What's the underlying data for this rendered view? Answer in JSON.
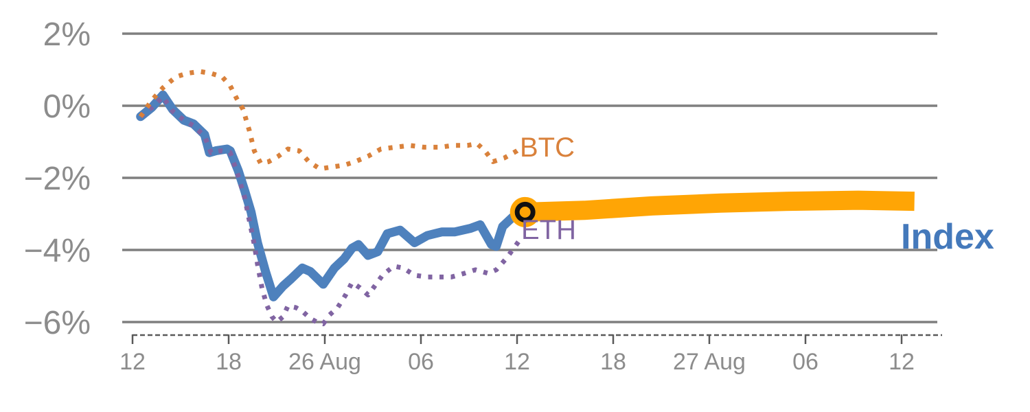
{
  "colors": {
    "background": "#FFFFFF",
    "gridline": "#7F7F7F",
    "axis_line": "#595959",
    "tick_label": "#8C8C8C",
    "btc": "#D9813B",
    "eth": "#8064A2",
    "index_line": "#4E81BD",
    "index_label": "#4479BB",
    "forecast_band": "#FFA505",
    "marker_ring": "#111111"
  },
  "chart_data": {
    "type": "line",
    "title": "",
    "xlabel": "",
    "ylabel": "",
    "grid": "horizontal",
    "legend_position": "inline-end-of-line",
    "x_axis": {
      "unit": "time (6-hour major ticks)",
      "range_hours": [
        0,
        50.5
      ],
      "ticks": [
        {
          "t": 0,
          "label": "12"
        },
        {
          "t": 6,
          "label": "18"
        },
        {
          "t": 12,
          "label": "26 Aug"
        },
        {
          "t": 18,
          "label": "06"
        },
        {
          "t": 24,
          "label": "12"
        },
        {
          "t": 30,
          "label": "18"
        },
        {
          "t": 36,
          "label": "27 Aug"
        },
        {
          "t": 42,
          "label": "06"
        },
        {
          "t": 48,
          "label": "12"
        }
      ]
    },
    "y_axis": {
      "unit": "%",
      "range": [
        -6.6,
        2.2
      ],
      "ticks": [
        {
          "v": 2,
          "label": "2%"
        },
        {
          "v": 0,
          "label": "0%"
        },
        {
          "v": -2,
          "label": "−2%"
        },
        {
          "v": -4,
          "label": "−4%"
        },
        {
          "v": -6,
          "label": "−6%"
        }
      ]
    },
    "series": [
      {
        "name": "Index",
        "color": "#4E81BD",
        "style": "solid-thick",
        "points": [
          [
            0.5,
            -0.3
          ],
          [
            1.2,
            -0.05
          ],
          [
            1.9,
            0.3
          ],
          [
            2.5,
            -0.1
          ],
          [
            3.2,
            -0.4
          ],
          [
            3.8,
            -0.5
          ],
          [
            4.5,
            -0.8
          ],
          [
            4.8,
            -1.3
          ],
          [
            5.2,
            -1.25
          ],
          [
            5.9,
            -1.2
          ],
          [
            6.1,
            -1.25
          ],
          [
            6.6,
            -1.8
          ],
          [
            7.0,
            -2.35
          ],
          [
            7.4,
            -2.95
          ],
          [
            7.8,
            -3.8
          ],
          [
            8.3,
            -4.6
          ],
          [
            8.8,
            -5.3
          ],
          [
            9.4,
            -5.0
          ],
          [
            9.9,
            -4.8
          ],
          [
            10.6,
            -4.5
          ],
          [
            11.1,
            -4.6
          ],
          [
            11.9,
            -4.95
          ],
          [
            12.6,
            -4.5
          ],
          [
            13.2,
            -4.25
          ],
          [
            13.7,
            -3.95
          ],
          [
            14.1,
            -3.85
          ],
          [
            14.7,
            -4.15
          ],
          [
            15.3,
            -4.05
          ],
          [
            15.9,
            -3.55
          ],
          [
            16.7,
            -3.45
          ],
          [
            17.6,
            -3.8
          ],
          [
            18.4,
            -3.6
          ],
          [
            19.3,
            -3.5
          ],
          [
            20.1,
            -3.5
          ],
          [
            21.1,
            -3.4
          ],
          [
            21.7,
            -3.3
          ],
          [
            22.4,
            -3.85
          ],
          [
            22.7,
            -3.9
          ],
          [
            23.1,
            -3.35
          ],
          [
            23.7,
            -3.1
          ],
          [
            24.5,
            -2.95
          ]
        ]
      },
      {
        "name": "ETH",
        "color": "#8064A2",
        "style": "dotted",
        "points": [
          [
            0.5,
            -0.3
          ],
          [
            1.2,
            -0.05
          ],
          [
            1.9,
            0.25
          ],
          [
            2.5,
            -0.15
          ],
          [
            3.2,
            -0.4
          ],
          [
            3.8,
            -0.55
          ],
          [
            4.5,
            -0.85
          ],
          [
            4.9,
            -1.3
          ],
          [
            5.5,
            -1.25
          ],
          [
            6.1,
            -1.3
          ],
          [
            6.6,
            -1.95
          ],
          [
            7.0,
            -2.55
          ],
          [
            7.3,
            -3.2
          ],
          [
            7.6,
            -3.85
          ],
          [
            7.8,
            -4.4
          ],
          [
            8.1,
            -5.1
          ],
          [
            8.4,
            -5.55
          ],
          [
            8.7,
            -5.85
          ],
          [
            9.0,
            -6.0
          ],
          [
            9.4,
            -5.85
          ],
          [
            9.7,
            -5.55
          ],
          [
            10.2,
            -5.6
          ],
          [
            10.6,
            -5.7
          ],
          [
            11.1,
            -5.9
          ],
          [
            11.5,
            -6.0
          ],
          [
            11.9,
            -6.05
          ],
          [
            12.3,
            -5.8
          ],
          [
            12.8,
            -5.6
          ],
          [
            13.3,
            -5.25
          ],
          [
            13.7,
            -4.9
          ],
          [
            14.2,
            -5.05
          ],
          [
            14.7,
            -5.25
          ],
          [
            15.2,
            -4.95
          ],
          [
            15.6,
            -4.7
          ],
          [
            16.3,
            -4.45
          ],
          [
            16.9,
            -4.5
          ],
          [
            17.6,
            -4.7
          ],
          [
            18.4,
            -4.75
          ],
          [
            19.1,
            -4.75
          ],
          [
            19.9,
            -4.75
          ],
          [
            20.7,
            -4.65
          ],
          [
            21.4,
            -4.55
          ],
          [
            22.2,
            -4.65
          ],
          [
            22.7,
            -4.55
          ],
          [
            23.3,
            -4.25
          ],
          [
            23.8,
            -3.95
          ],
          [
            24.2,
            -3.7
          ]
        ]
      },
      {
        "name": "BTC",
        "color": "#D9813B",
        "style": "dotted",
        "points": [
          [
            0.5,
            -0.3
          ],
          [
            1.2,
            0.15
          ],
          [
            1.9,
            0.5
          ],
          [
            2.7,
            0.8
          ],
          [
            3.4,
            0.9
          ],
          [
            4.2,
            0.95
          ],
          [
            4.9,
            0.9
          ],
          [
            5.6,
            0.8
          ],
          [
            6.1,
            0.55
          ],
          [
            6.5,
            0.2
          ],
          [
            6.9,
            -0.1
          ],
          [
            7.3,
            -0.7
          ],
          [
            7.6,
            -1.25
          ],
          [
            8.0,
            -1.6
          ],
          [
            8.5,
            -1.55
          ],
          [
            9.1,
            -1.4
          ],
          [
            9.7,
            -1.2
          ],
          [
            10.4,
            -1.25
          ],
          [
            11.0,
            -1.55
          ],
          [
            11.7,
            -1.75
          ],
          [
            12.4,
            -1.7
          ],
          [
            13.2,
            -1.65
          ],
          [
            13.9,
            -1.55
          ],
          [
            14.7,
            -1.4
          ],
          [
            15.5,
            -1.2
          ],
          [
            16.4,
            -1.15
          ],
          [
            17.3,
            -1.1
          ],
          [
            18.2,
            -1.15
          ],
          [
            19.2,
            -1.15
          ],
          [
            20.0,
            -1.1
          ],
          [
            20.9,
            -1.1
          ],
          [
            21.5,
            -1.05
          ],
          [
            22.0,
            -1.25
          ],
          [
            22.5,
            -1.55
          ],
          [
            23.2,
            -1.45
          ],
          [
            24.0,
            -1.25
          ],
          [
            24.3,
            -1.15
          ]
        ]
      },
      {
        "name": "Index forecast",
        "color": "#FFA505",
        "style": "band",
        "points": [
          [
            24.5,
            -2.95
          ],
          [
            28.2,
            -2.9
          ],
          [
            32.4,
            -2.78
          ],
          [
            36.7,
            -2.7
          ],
          [
            41.0,
            -2.65
          ],
          [
            45.3,
            -2.62
          ],
          [
            48.8,
            -2.65
          ]
        ]
      }
    ],
    "marker": {
      "t": 24.5,
      "pct": -2.95,
      "description": "black ring on amber disc at forecast start"
    },
    "inline_labels": {
      "btc": "BTC",
      "eth": "ETH",
      "index": "Index"
    }
  }
}
